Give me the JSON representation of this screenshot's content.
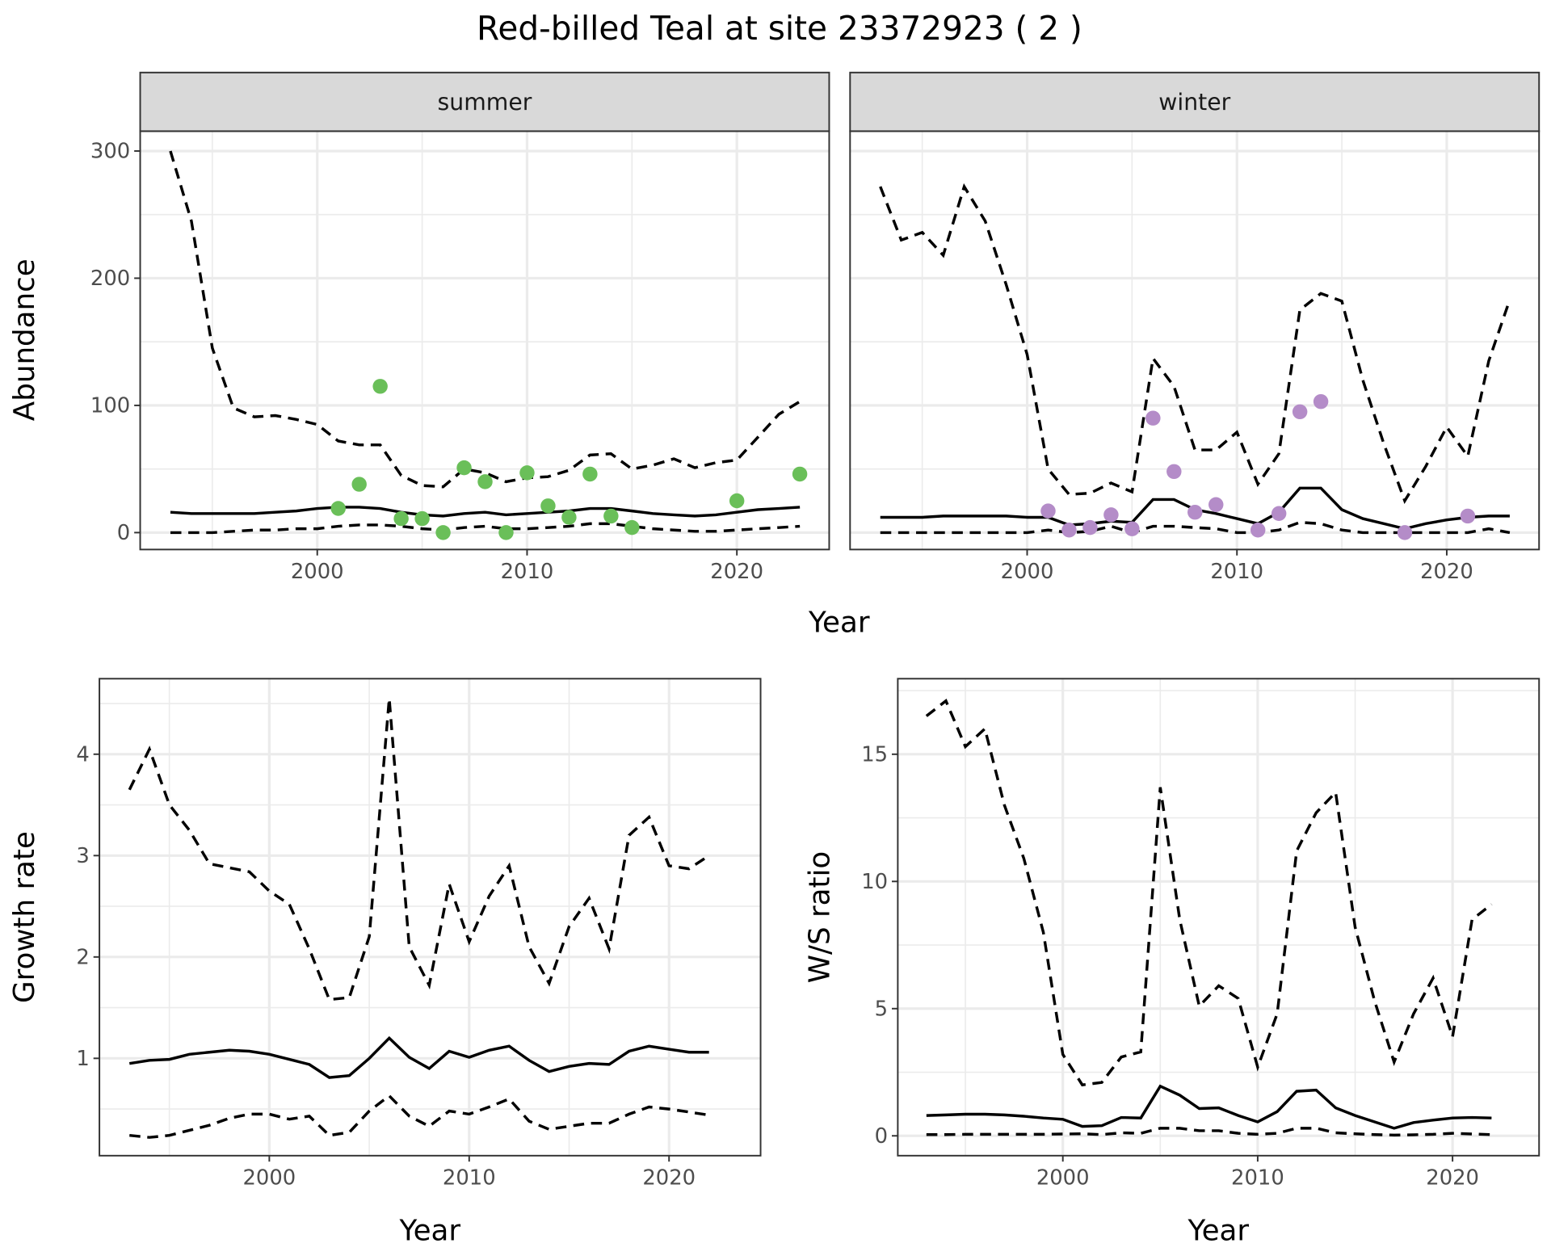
{
  "title": "Red-billed Teal at site 23372923 ( 2 )",
  "colors": {
    "summer_points": "#6abf59",
    "winter_points": "#b48cc8",
    "line": "#000000",
    "grid": "#ebebeb",
    "strip_bg": "#d9d9d9"
  },
  "chart_data": [
    {
      "type": "line",
      "facet": "summer",
      "xlabel": "Year",
      "ylabel": "Abundance",
      "xlim": [
        1991.56,
        2024.4
      ],
      "ylim": [
        -13.3,
        315.6
      ],
      "xticks": [
        "2000",
        "2010",
        "2020"
      ],
      "yticks": [
        "0",
        "100",
        "200",
        "300"
      ],
      "x": [
        1993,
        1994,
        1995,
        1996,
        1997,
        1998,
        1999,
        2000,
        2001,
        2002,
        2003,
        2004,
        2005,
        2006,
        2007,
        2008,
        2009,
        2010,
        2011,
        2012,
        2013,
        2014,
        2015,
        2016,
        2017,
        2018,
        2019,
        2020,
        2021,
        2022,
        2023
      ],
      "series": [
        {
          "name": "upper",
          "style": "dashed",
          "values": [
            300,
            245,
            145,
            98,
            91,
            92,
            89,
            85,
            72,
            69,
            69,
            45,
            37,
            36,
            50,
            47,
            40,
            43,
            44,
            49,
            61,
            62,
            50,
            53,
            58,
            51,
            55,
            57,
            75,
            93,
            103
          ]
        },
        {
          "name": "mean",
          "style": "solid",
          "values": [
            16,
            15,
            15,
            15,
            15,
            16,
            17,
            19,
            20,
            20,
            19,
            16,
            14,
            13,
            15,
            16,
            14,
            15,
            16,
            17,
            19,
            19,
            17,
            15,
            14,
            13,
            14,
            16,
            18,
            19,
            20
          ]
        },
        {
          "name": "lower",
          "style": "dashed",
          "values": [
            0,
            0,
            0,
            1,
            2,
            2,
            3,
            3,
            5,
            6,
            6,
            5,
            3,
            2,
            4,
            5,
            3,
            3,
            4,
            5,
            7,
            7,
            5,
            3,
            2,
            1,
            1,
            2,
            3,
            4,
            5
          ]
        }
      ],
      "points": {
        "x": [
          2001,
          2002,
          2003,
          2004,
          2005,
          2006,
          2007,
          2008,
          2009,
          2010,
          2011,
          2012,
          2013,
          2014,
          2015,
          2020,
          2023
        ],
        "y": [
          19,
          38,
          115,
          11,
          11,
          0,
          51,
          40,
          0,
          47,
          21,
          12,
          46,
          13,
          4,
          25,
          46
        ]
      }
    },
    {
      "type": "line",
      "facet": "winter",
      "xlabel": "Year",
      "ylabel": "Abundance",
      "xlim": [
        1991.56,
        2024.4
      ],
      "ylim": [
        -13.3,
        315.6
      ],
      "xticks": [
        "2000",
        "2010",
        "2020"
      ],
      "yticks": [
        "0",
        "100",
        "200",
        "300"
      ],
      "x": [
        1993,
        1994,
        1995,
        1996,
        1997,
        1998,
        1999,
        2000,
        2001,
        2002,
        2003,
        2004,
        2005,
        2006,
        2007,
        2008,
        2009,
        2010,
        2011,
        2012,
        2013,
        2014,
        2015,
        2016,
        2017,
        2018,
        2019,
        2020,
        2021,
        2022,
        2023
      ],
      "series": [
        {
          "name": "upper",
          "style": "dashed",
          "values": [
            272,
            230,
            236,
            218,
            272,
            245,
            195,
            140,
            50,
            30,
            31,
            39,
            32,
            137,
            115,
            65,
            65,
            79,
            38,
            62,
            175,
            188,
            182,
            120,
            70,
            25,
            52,
            83,
            60,
            135,
            183
          ]
        },
        {
          "name": "mean",
          "style": "solid",
          "values": [
            12,
            12,
            12,
            13,
            13,
            13,
            13,
            12,
            12,
            6,
            7,
            9,
            8,
            26,
            26,
            18,
            15,
            11,
            7,
            16,
            35,
            35,
            18,
            11,
            7,
            3,
            7,
            10,
            12,
            13,
            13
          ]
        },
        {
          "name": "lower",
          "style": "dashed",
          "values": [
            0,
            0,
            0,
            0,
            0,
            0,
            0,
            0,
            2,
            0,
            1,
            5,
            0,
            5,
            5,
            4,
            3,
            0,
            0,
            2,
            8,
            7,
            2,
            0,
            0,
            0,
            0,
            0,
            0,
            3,
            0
          ]
        }
      ],
      "points": {
        "x": [
          2001,
          2002,
          2003,
          2004,
          2005,
          2006,
          2007,
          2008,
          2009,
          2011,
          2012,
          2013,
          2014,
          2018,
          2021
        ],
        "y": [
          17,
          2,
          4,
          14,
          3,
          90,
          48,
          16,
          22,
          2,
          15,
          95,
          103,
          0,
          13
        ]
      }
    },
    {
      "type": "line",
      "xlabel": "Year",
      "ylabel": "Growth rate",
      "xlim": [
        1991.5,
        2024.58
      ],
      "ylim": [
        0.04,
        4.745
      ],
      "xticks": [
        "2000",
        "2010",
        "2020"
      ],
      "yticks": [
        "1",
        "2",
        "3",
        "4"
      ],
      "x": [
        1993,
        1994,
        1995,
        1996,
        1997,
        1998,
        1999,
        2000,
        2001,
        2002,
        2003,
        2004,
        2005,
        2006,
        2007,
        2008,
        2009,
        2010,
        2011,
        2012,
        2013,
        2014,
        2015,
        2016,
        2017,
        2018,
        2019,
        2020,
        2021,
        2022
      ],
      "series": [
        {
          "name": "upper",
          "style": "dashed",
          "values": [
            3.65,
            4.05,
            3.5,
            3.25,
            2.92,
            2.88,
            2.84,
            2.65,
            2.52,
            2.08,
            1.58,
            1.6,
            2.2,
            4.55,
            2.1,
            1.72,
            2.72,
            2.15,
            2.6,
            2.9,
            2.1,
            1.74,
            2.3,
            2.58,
            2.08,
            3.2,
            3.38,
            2.9,
            2.87,
            3.0
          ]
        },
        {
          "name": "mean",
          "style": "solid",
          "values": [
            0.95,
            0.98,
            0.99,
            1.04,
            1.06,
            1.08,
            1.07,
            1.04,
            0.99,
            0.94,
            0.81,
            0.83,
            1.0,
            1.2,
            1.01,
            0.9,
            1.07,
            1.01,
            1.08,
            1.12,
            0.98,
            0.87,
            0.92,
            0.95,
            0.94,
            1.07,
            1.12,
            1.09,
            1.06,
            1.06
          ]
        },
        {
          "name": "lower",
          "style": "dashed",
          "values": [
            0.24,
            0.22,
            0.24,
            0.29,
            0.34,
            0.41,
            0.45,
            0.45,
            0.4,
            0.43,
            0.24,
            0.27,
            0.48,
            0.63,
            0.43,
            0.33,
            0.48,
            0.45,
            0.52,
            0.6,
            0.38,
            0.3,
            0.33,
            0.36,
            0.36,
            0.45,
            0.52,
            0.5,
            0.47,
            0.44
          ]
        }
      ]
    },
    {
      "type": "line",
      "xlabel": "Year",
      "ylabel": "W/S ratio",
      "xlim": [
        1991.53,
        2024.44
      ],
      "ylim": [
        -0.78,
        17.97
      ],
      "xticks": [
        "2000",
        "2010",
        "2020"
      ],
      "yticks": [
        "0",
        "5",
        "10",
        "15"
      ],
      "x": [
        1993,
        1994,
        1995,
        1996,
        1997,
        1998,
        1999,
        2000,
        2001,
        2002,
        2003,
        2004,
        2005,
        2006,
        2007,
        2008,
        2009,
        2010,
        2011,
        2012,
        2013,
        2014,
        2015,
        2016,
        2017,
        2018,
        2019,
        2020,
        2021,
        2022
      ],
      "series": [
        {
          "name": "upper",
          "style": "dashed",
          "values": [
            16.5,
            17.1,
            15.3,
            16.0,
            13.0,
            10.9,
            8.0,
            3.2,
            2.0,
            2.1,
            3.1,
            3.3,
            13.7,
            8.5,
            5.1,
            5.9,
            5.4,
            2.7,
            4.8,
            11.2,
            12.7,
            13.5,
            8.2,
            5.3,
            2.9,
            4.8,
            6.2,
            3.9,
            8.5,
            9.1
          ]
        },
        {
          "name": "mean",
          "style": "solid",
          "values": [
            0.8,
            0.82,
            0.85,
            0.85,
            0.82,
            0.77,
            0.7,
            0.65,
            0.37,
            0.4,
            0.72,
            0.7,
            1.95,
            1.6,
            1.07,
            1.1,
            0.8,
            0.55,
            0.95,
            1.75,
            1.8,
            1.1,
            0.8,
            0.55,
            0.3,
            0.52,
            0.62,
            0.7,
            0.72,
            0.7
          ]
        },
        {
          "name": "lower",
          "style": "dashed",
          "values": [
            0.05,
            0.05,
            0.06,
            0.06,
            0.06,
            0.06,
            0.06,
            0.07,
            0.08,
            0.05,
            0.12,
            0.1,
            0.3,
            0.3,
            0.2,
            0.2,
            0.1,
            0.06,
            0.1,
            0.3,
            0.3,
            0.12,
            0.08,
            0.05,
            0.03,
            0.04,
            0.06,
            0.1,
            0.07,
            0.05
          ]
        }
      ]
    }
  ]
}
